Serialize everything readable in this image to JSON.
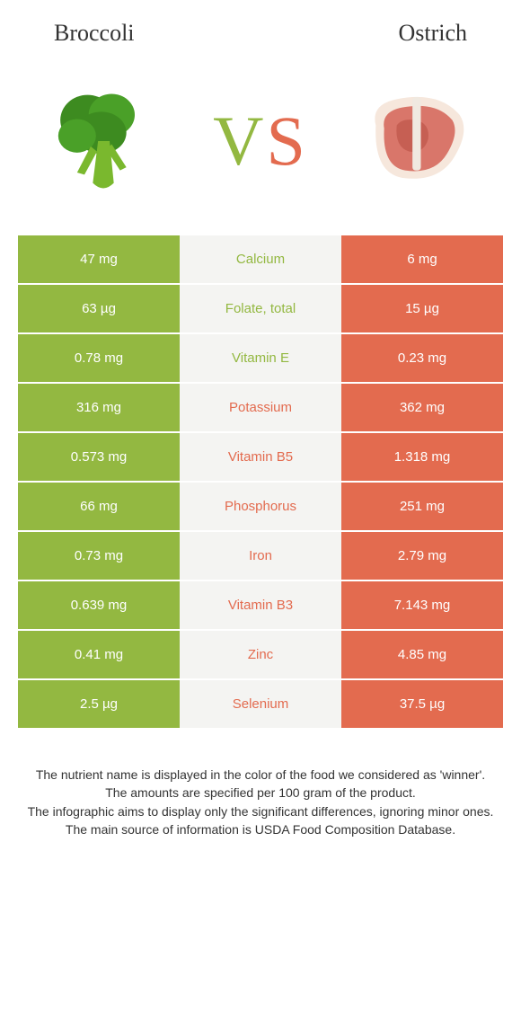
{
  "header": {
    "left_label": "Broccoli",
    "right_label": "Ostrich",
    "vs_v": "V",
    "vs_s": "S"
  },
  "colors": {
    "left": "#93b841",
    "right": "#e36b4f",
    "midbg": "#f4f4f2",
    "text_left_winner": "#93b841",
    "text_right_winner": "#e36b4f"
  },
  "typography": {
    "header_fontsize": 26,
    "vs_fontsize": 78,
    "cell_fontsize": 15,
    "footnote_fontsize": 14
  },
  "icons": {
    "left": "broccoli",
    "right": "meat-steak"
  },
  "table": {
    "type": "table",
    "columns": [
      "left_value",
      "nutrient",
      "right_value"
    ],
    "rows": [
      {
        "left": "47 mg",
        "mid": "Calcium",
        "right": "6 mg",
        "winner": "left"
      },
      {
        "left": "63 µg",
        "mid": "Folate, total",
        "right": "15 µg",
        "winner": "left"
      },
      {
        "left": "0.78 mg",
        "mid": "Vitamin E",
        "right": "0.23 mg",
        "winner": "left"
      },
      {
        "left": "316 mg",
        "mid": "Potassium",
        "right": "362 mg",
        "winner": "right"
      },
      {
        "left": "0.573 mg",
        "mid": "Vitamin B5",
        "right": "1.318 mg",
        "winner": "right"
      },
      {
        "left": "66 mg",
        "mid": "Phosphorus",
        "right": "251 mg",
        "winner": "right"
      },
      {
        "left": "0.73 mg",
        "mid": "Iron",
        "right": "2.79 mg",
        "winner": "right"
      },
      {
        "left": "0.639 mg",
        "mid": "Vitamin B3",
        "right": "7.143 mg",
        "winner": "right"
      },
      {
        "left": "0.41 mg",
        "mid": "Zinc",
        "right": "4.85 mg",
        "winner": "right"
      },
      {
        "left": "2.5 µg",
        "mid": "Selenium",
        "right": "37.5 µg",
        "winner": "right"
      }
    ]
  },
  "footnote": {
    "line1": "The nutrient name is displayed in the color of the food we considered as 'winner'.",
    "line2": "The amounts are specified per 100 gram of the product.",
    "line3": "The infographic aims to display only the significant differences, ignoring minor ones.",
    "line4": "The main source of information is USDA Food Composition Database."
  }
}
